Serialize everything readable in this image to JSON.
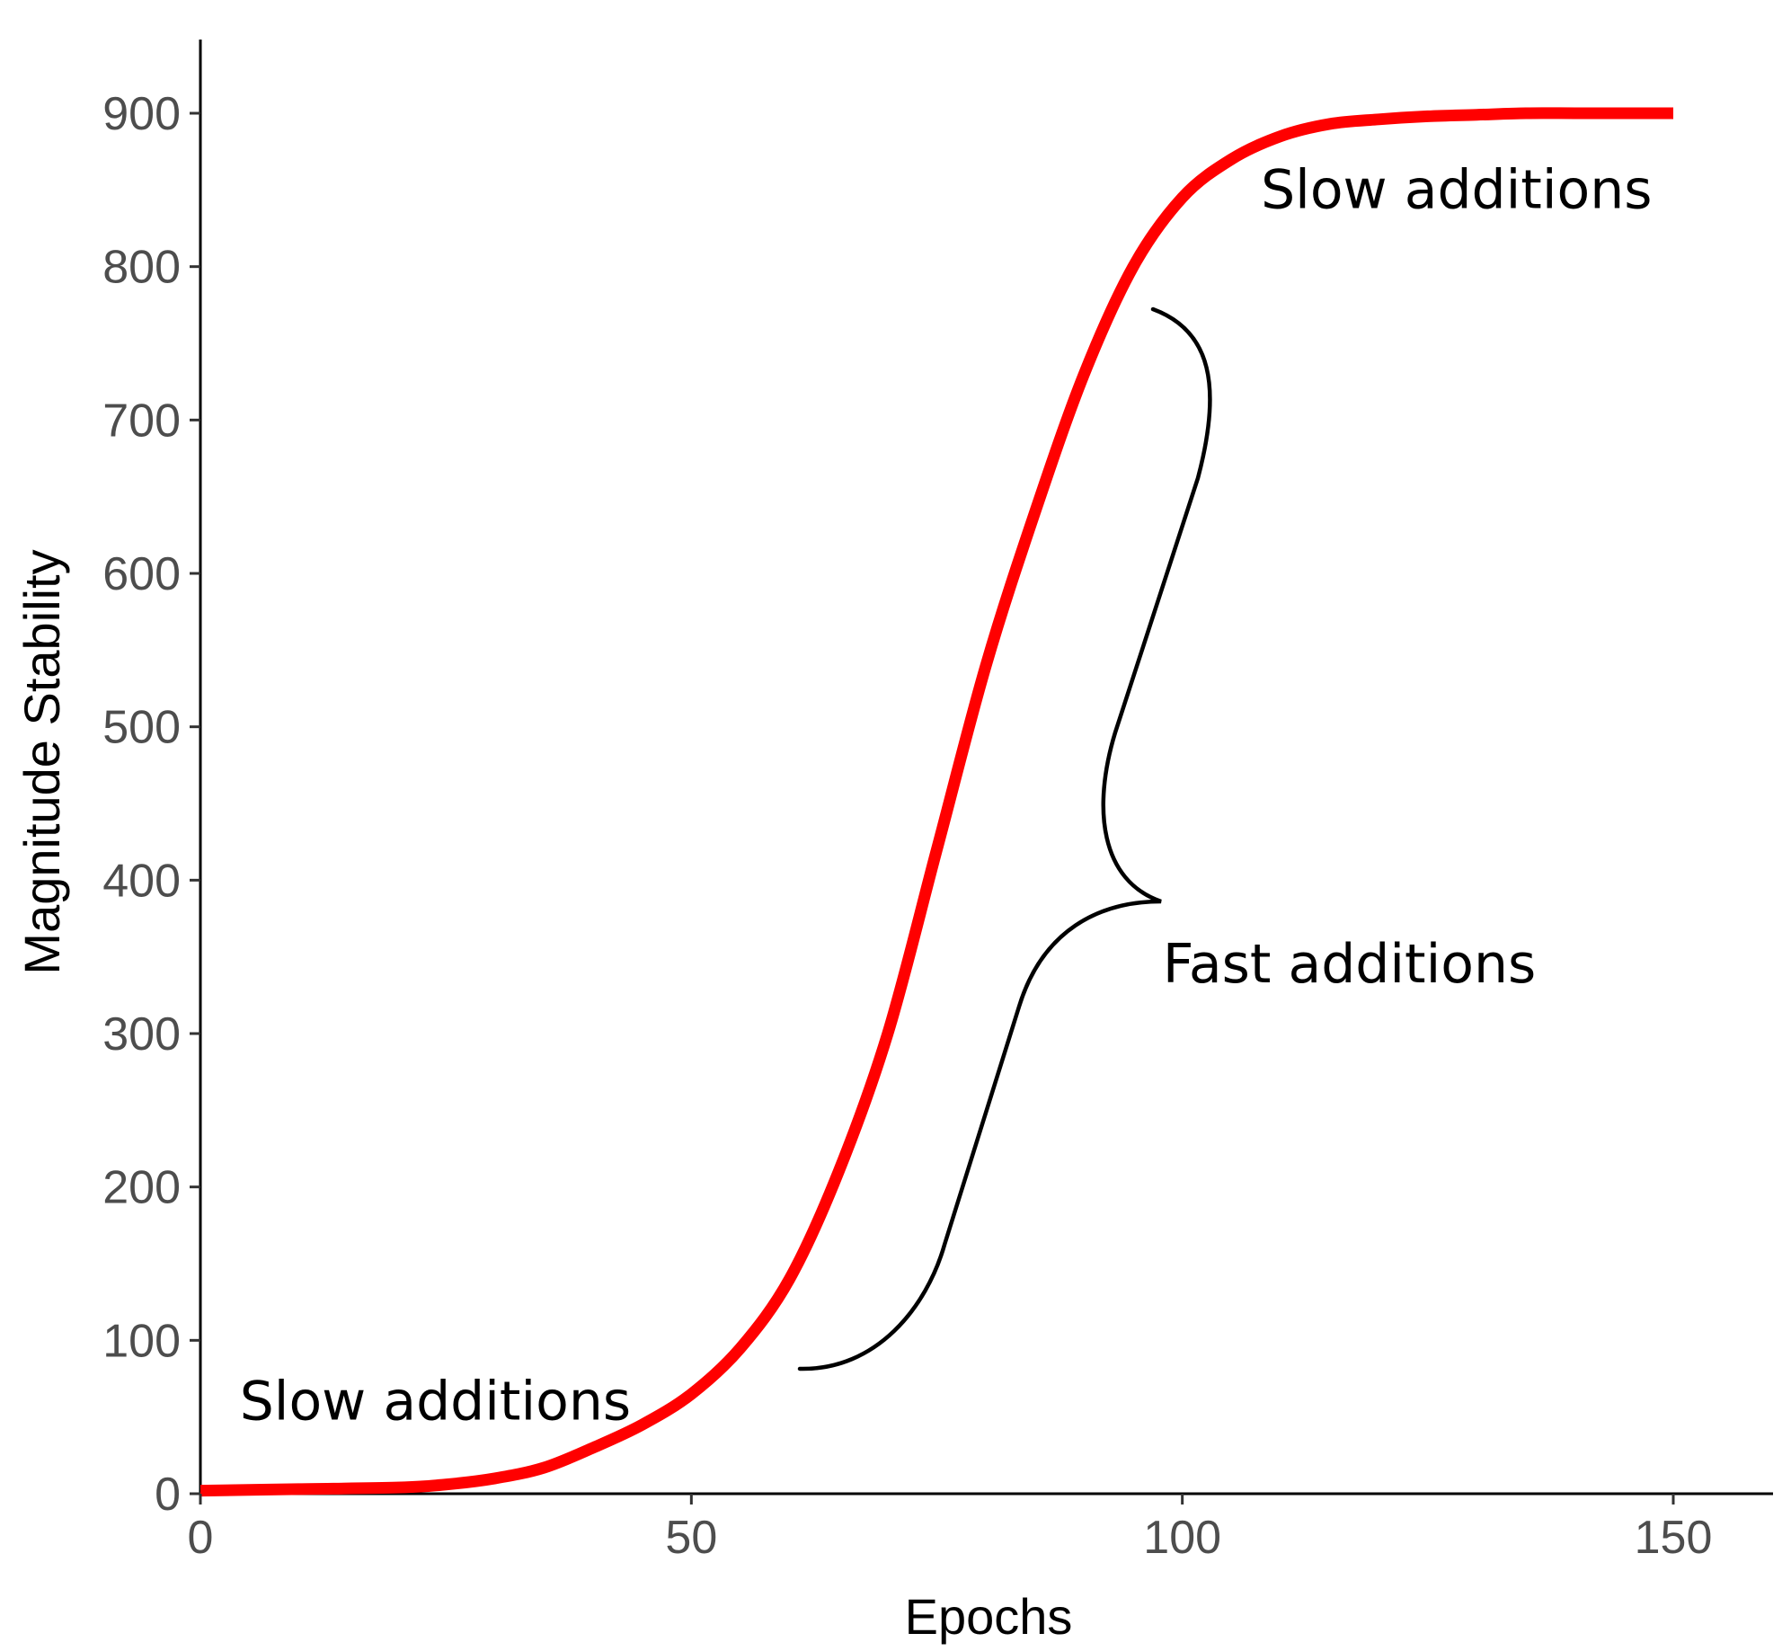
{
  "chart_data": {
    "type": "line",
    "title": "",
    "xlabel": "Epochs",
    "ylabel": "Magnitude Stability",
    "xlim": [
      0,
      160
    ],
    "ylim": [
      0,
      950
    ],
    "xticks": [
      0,
      50,
      100,
      150
    ],
    "yticks": [
      0,
      100,
      200,
      300,
      400,
      500,
      600,
      700,
      800,
      900
    ],
    "grid": false,
    "legend": "none",
    "series": [
      {
        "color": "#ff0000",
        "x": [
          0,
          10,
          20,
          25,
          30,
          35,
          40,
          45,
          50,
          55,
          60,
          65,
          70,
          75,
          80,
          85,
          90,
          95,
          100,
          105,
          110,
          115,
          120,
          125,
          130,
          135,
          140,
          145,
          150
        ],
        "y": [
          2,
          3,
          4,
          6,
          10,
          17,
          30,
          45,
          65,
          95,
          140,
          210,
          300,
          420,
          540,
          640,
          730,
          800,
          845,
          870,
          885,
          893,
          896,
          898,
          899,
          900,
          900,
          900,
          900
        ]
      }
    ],
    "annotations": [
      {
        "text": "Slow additions",
        "x": 4,
        "y": 60
      },
      {
        "text": "Fast additions",
        "x": 98,
        "y": 345
      },
      {
        "text": "Slow additions",
        "x": 108,
        "y": 850
      }
    ]
  }
}
